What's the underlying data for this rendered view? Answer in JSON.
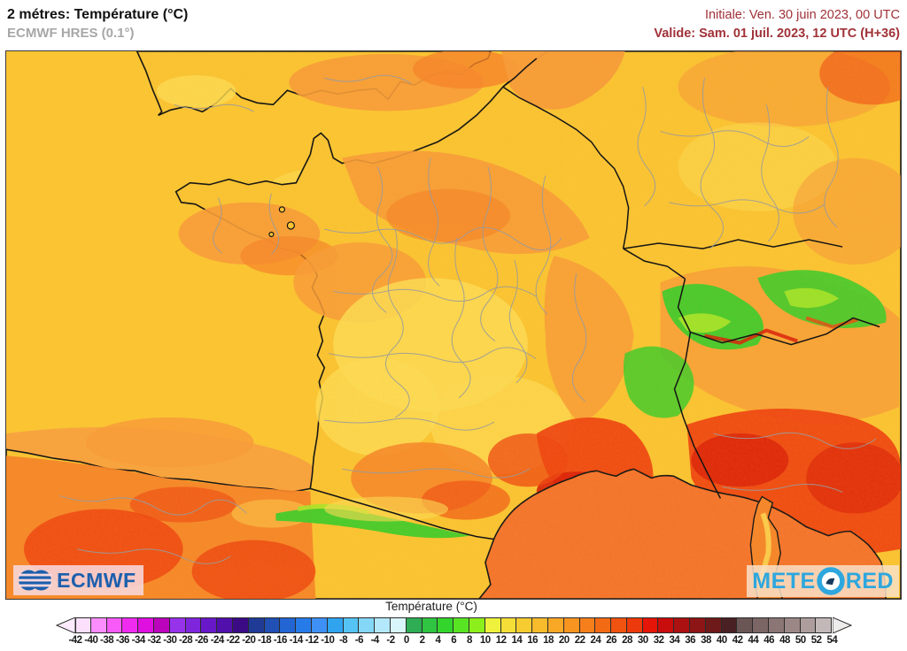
{
  "header": {
    "title": "2 métres: Température (°C)",
    "subtitle": "ECMWF HRES (0.1°)",
    "initial_label": "Initiale: Ven. 30 juin 2023, 00 UTC",
    "valid_label": "Valide: Sam. 01 juil. 2023, 12 UTC (H+36)",
    "accent_color": "#A03238",
    "subtitle_color": "#A7A7A7"
  },
  "map": {
    "colors": {
      "sea": "#FAC433",
      "sea_biscay": "#F7A43F",
      "sea_med": "#F4742D",
      "land_base": "#FAC433",
      "land_light": "#FCDC55",
      "land_orange": "#F79C3A",
      "land_deep_orange": "#F5852A",
      "land_red": "#EE4612",
      "land_dark_red": "#D91F0A",
      "mountain_green": "#3ECC2C",
      "mountain_lime": "#A8E62A",
      "coast": "#141414",
      "region_border": "#9B9B9B"
    },
    "logos": {
      "ecmwf": "ECMWF",
      "meteored_left": "METE",
      "meteored_right": "RED"
    }
  },
  "legend": {
    "title": "Température (°C)",
    "ticks": [
      -42,
      -40,
      -38,
      -36,
      -34,
      -32,
      -30,
      -28,
      -26,
      -24,
      -22,
      -20,
      -18,
      -16,
      -14,
      -12,
      -10,
      -8,
      -6,
      -4,
      -2,
      0,
      2,
      4,
      6,
      8,
      10,
      12,
      14,
      16,
      18,
      20,
      22,
      24,
      26,
      28,
      30,
      32,
      34,
      36,
      38,
      40,
      42,
      44,
      46,
      48,
      50,
      52,
      54
    ],
    "cell_colors": [
      "#FBDFFB",
      "#FC8DFC",
      "#F75AF7",
      "#F02BF0",
      "#DF0FDF",
      "#BB04BB",
      "#9732EB",
      "#7F26DD",
      "#6818C8",
      "#5110AB",
      "#3B0A85",
      "#1F3B96",
      "#2050B4",
      "#2365D2",
      "#277BE8",
      "#3E90F6",
      "#31A4EF",
      "#55C3F3",
      "#84D7F7",
      "#B3E8FA",
      "#D9F5FC",
      "#2EAD55",
      "#2FC441",
      "#33D52C",
      "#59E423",
      "#8CEF1B",
      "#EEF23D",
      "#F4DE37",
      "#F6CC31",
      "#F8BB2B",
      "#F9A826",
      "#F89420",
      "#F67F1B",
      "#F36A15",
      "#F05210",
      "#EC3A0C",
      "#E51507",
      "#C90D0D",
      "#AC1111",
      "#8E1515",
      "#6F1A1A",
      "#492023",
      "#6B5656",
      "#7C6565",
      "#8B7575",
      "#9C8787",
      "#AE9D9D",
      "#C3B8B8"
    ],
    "left_arrow_color": "#FCEBFC",
    "right_arrow_color": "#EFECEC"
  }
}
